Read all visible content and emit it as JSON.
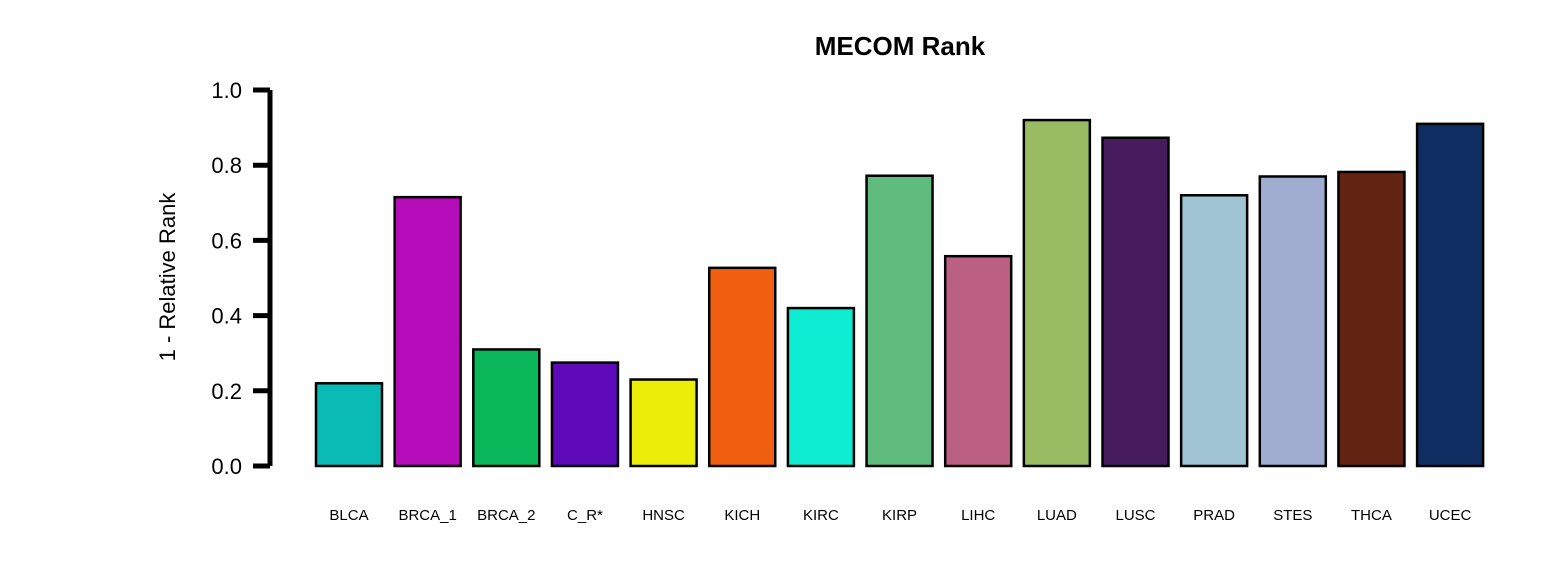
{
  "chart_data": {
    "type": "bar",
    "title": "MECOM Rank",
    "ylabel": "1 - Relative Rank",
    "xlabel": "",
    "ylim": [
      0,
      1
    ],
    "yticks": [
      "0.0",
      "0.2",
      "0.4",
      "0.6",
      "0.8",
      "1.0"
    ],
    "grid": false,
    "categories": [
      "BLCA",
      "BRCA_1",
      "BRCA_2",
      "C_R*",
      "HNSC",
      "KICH",
      "KIRC",
      "KIRP",
      "LIHC",
      "LUAD",
      "LUSC",
      "PRAD",
      "STES",
      "THCA",
      "UCEC"
    ],
    "values": [
      0.22,
      0.715,
      0.31,
      0.275,
      0.23,
      0.527,
      0.42,
      0.772,
      0.558,
      0.92,
      0.873,
      0.72,
      0.77,
      0.782,
      0.91
    ],
    "colors": [
      "#0ABAB5",
      "#B30CB8",
      "#0AB85A",
      "#5E0AB8",
      "#EDED0A",
      "#F06010",
      "#0EEDD1",
      "#60BB7F",
      "#BB6080",
      "#97BC61",
      "#461C5E",
      "#A0C4D3",
      "#A0ADD0",
      "#642413",
      "#0E2E62"
    ]
  }
}
